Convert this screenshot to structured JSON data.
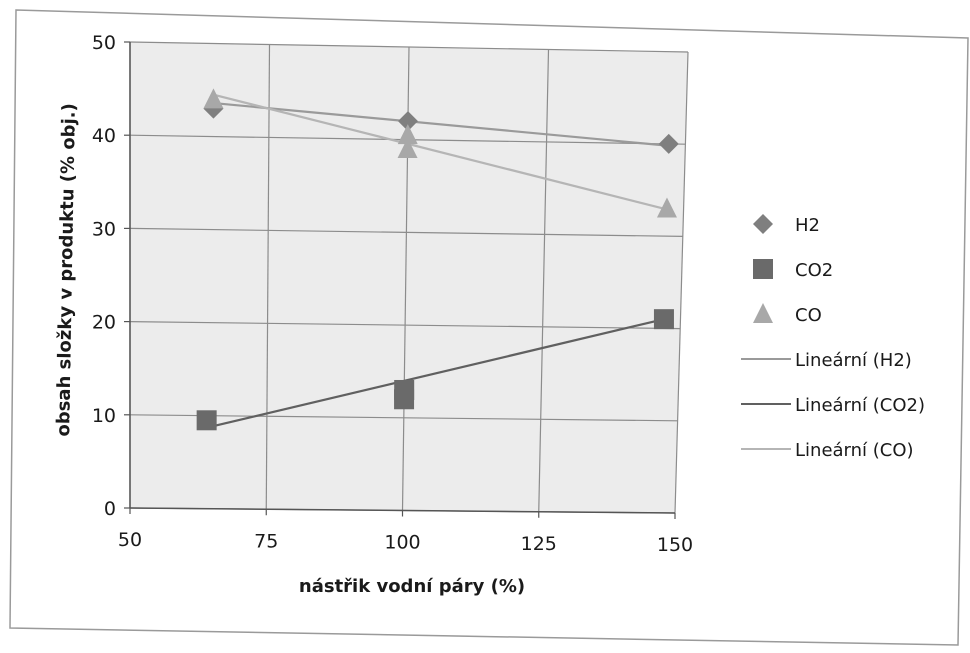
{
  "chart_data": {
    "type": "scatter",
    "xlabel": "nástřik vodní páry (%)",
    "ylabel": "obsah složky v produktu (% obj.)",
    "xlim": [
      50,
      150
    ],
    "ylim": [
      0,
      50
    ],
    "xticks": [
      50,
      75,
      100,
      125,
      150
    ],
    "yticks": [
      0,
      10,
      20,
      30,
      40,
      50
    ],
    "grid": true,
    "legend_position": "right",
    "series": [
      {
        "name": "H2",
        "marker": "diamond",
        "color": "#7f7f7f",
        "points": [
          {
            "x": 65,
            "y": 43
          },
          {
            "x": 100,
            "y": 42
          },
          {
            "x": 147,
            "y": 40
          }
        ]
      },
      {
        "name": "CO2",
        "marker": "square",
        "color": "#6a6a6a",
        "points": [
          {
            "x": 64,
            "y": 9.5
          },
          {
            "x": 100,
            "y": 13
          },
          {
            "x": 100,
            "y": 12
          },
          {
            "x": 147,
            "y": 21
          }
        ]
      },
      {
        "name": "CO",
        "marker": "triangle",
        "color": "#a8a8a8",
        "points": [
          {
            "x": 65,
            "y": 44
          },
          {
            "x": 100,
            "y": 40.5
          },
          {
            "x": 100,
            "y": 39
          },
          {
            "x": 147,
            "y": 33
          }
        ]
      }
    ],
    "trendlines": [
      {
        "name": "Lineární (H2)",
        "color": "#9a9a9a",
        "from": {
          "x": 65,
          "y": 43.6
        },
        "to": {
          "x": 147,
          "y": 39.8
        }
      },
      {
        "name": "Lineární (CO2)",
        "color": "#606060",
        "from": {
          "x": 64,
          "y": 8.7
        },
        "to": {
          "x": 147,
          "y": 21
        }
      },
      {
        "name": "Lineární (CO)",
        "color": "#b5b5b5",
        "from": {
          "x": 65,
          "y": 44.5
        },
        "to": {
          "x": 147,
          "y": 32.9
        }
      }
    ]
  }
}
